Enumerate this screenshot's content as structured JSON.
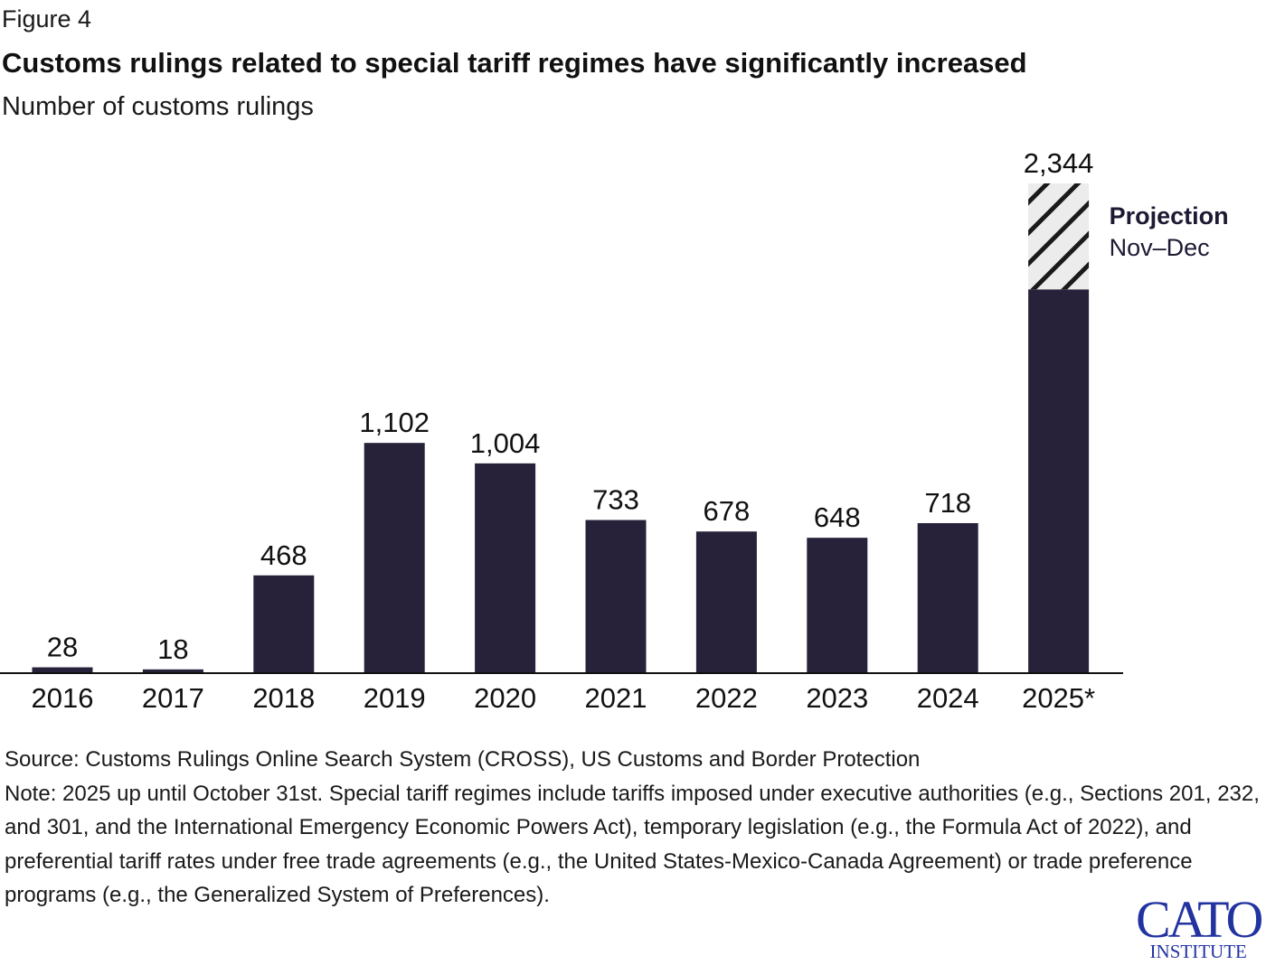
{
  "figure_label": "Figure 4",
  "chart_data": {
    "type": "bar",
    "title": "Customs rulings related to special tariff regimes have significantly increased",
    "subtitle": "Number of customs rulings",
    "categories": [
      "2016",
      "2017",
      "2018",
      "2019",
      "2020",
      "2021",
      "2022",
      "2023",
      "2024",
      "2025*"
    ],
    "values": [
      28,
      18,
      468,
      1102,
      1004,
      733,
      678,
      648,
      718,
      2344
    ],
    "data_labels": [
      "28",
      "18",
      "468",
      "1,102",
      "1,004",
      "733",
      "678",
      "648",
      "718",
      "2,344"
    ],
    "projection": {
      "category": "2025*",
      "actual_estimate": 1837,
      "projected_estimate": 507,
      "label": "Projection",
      "sublabel": "Nov–Dec"
    },
    "ylim": [
      0,
      2400
    ],
    "grid": false,
    "colors": {
      "bar": "#27223a",
      "projection_fill": "#ececec",
      "hatch": "#1a1a1a"
    }
  },
  "notes": {
    "source": "Source: Customs Rulings Online Search System (CROSS), US Customs and Border Protection",
    "note": "Note: 2025 up until October 31st. Special tariff regimes include tariffs imposed under executive authorities (e.g., Sections 201, 232, and 301, and the International Emergency Economic Powers Act), temporary legislation (e.g., the Formula Act of 2022), and preferential tariff rates under free trade agreements (e.g., the United States-Mexico-Canada Agreement) or trade preference programs (e.g., the Generalized System of Preferences)."
  },
  "logo": {
    "line1": "CATO",
    "line2": "INSTITUTE"
  }
}
